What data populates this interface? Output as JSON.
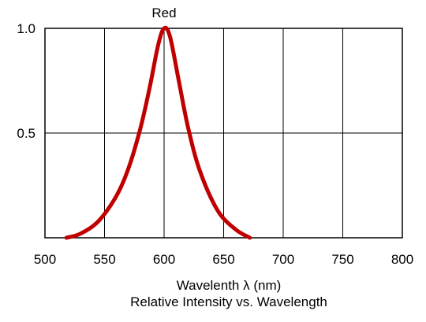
{
  "chart_data": {
    "type": "line",
    "title": "Relative Intensity vs. Wavelength",
    "xlabel": "Wavelenth λ (nm)",
    "ylabel": "",
    "xlim": [
      500,
      800
    ],
    "ylim": [
      0,
      1.0
    ],
    "x_ticks": [
      "500",
      "550",
      "600",
      "650",
      "700",
      "750",
      "800"
    ],
    "y_ticks": [
      "0.5",
      "1.0"
    ],
    "grid": true,
    "series": [
      {
        "name": "Red",
        "color": "#c00000",
        "points": [
          [
            518,
            0.0
          ],
          [
            530,
            0.02
          ],
          [
            545,
            0.08
          ],
          [
            560,
            0.2
          ],
          [
            570,
            0.33
          ],
          [
            580,
            0.52
          ],
          [
            588,
            0.72
          ],
          [
            595,
            0.92
          ],
          [
            600,
            1.0
          ],
          [
            605,
            0.96
          ],
          [
            612,
            0.76
          ],
          [
            620,
            0.53
          ],
          [
            630,
            0.32
          ],
          [
            645,
            0.13
          ],
          [
            660,
            0.04
          ],
          [
            672,
            0.0
          ]
        ]
      }
    ]
  }
}
